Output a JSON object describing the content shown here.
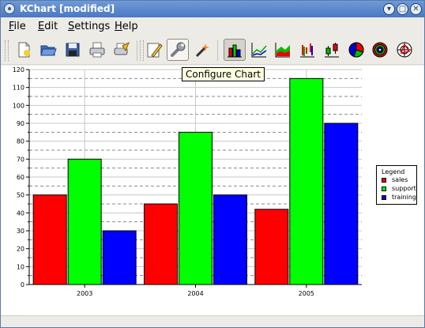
{
  "window": {
    "title": "KChart [modified]"
  },
  "titlebar_buttons": [
    "minimize",
    "maximize",
    "close"
  ],
  "menu": [
    {
      "label": "File",
      "mnemonic": "F",
      "rest": "ile"
    },
    {
      "label": "Edit",
      "mnemonic": "E",
      "rest": "dit"
    },
    {
      "label": "Settings",
      "mnemonic": "S",
      "rest": "ettings"
    },
    {
      "label": "Help",
      "mnemonic": "H",
      "rest": "elp"
    }
  ],
  "toolbar": {
    "tooltip": "Configure Chart",
    "buttons": [
      {
        "name": "new-document-icon"
      },
      {
        "name": "open-folder-icon"
      },
      {
        "name": "save-icon"
      },
      {
        "name": "print-icon"
      },
      {
        "name": "print-preview-icon"
      },
      {
        "name": "edit-data-icon"
      },
      {
        "name": "configure-chart-icon",
        "state": "hover"
      },
      {
        "name": "wizard-icon"
      },
      {
        "name": "bar-chart-icon",
        "state": "pressed"
      },
      {
        "name": "line-chart-icon"
      },
      {
        "name": "area-chart-icon"
      },
      {
        "name": "hilo-chart-icon"
      },
      {
        "name": "box-whisker-chart-icon"
      },
      {
        "name": "pie-chart-icon"
      },
      {
        "name": "ring-chart-icon"
      },
      {
        "name": "polar-chart-icon"
      }
    ]
  },
  "colors": {
    "sales": "#ff0000",
    "support": "#00ff00",
    "training": "#0000ff"
  },
  "chart_data": {
    "type": "bar",
    "categories": [
      "2003",
      "2004",
      "2005"
    ],
    "series": [
      {
        "name": "sales",
        "values": [
          50,
          45,
          42
        ]
      },
      {
        "name": "support",
        "values": [
          70,
          85,
          115
        ]
      },
      {
        "name": "training",
        "values": [
          30,
          50,
          90
        ]
      }
    ],
    "ylim": [
      0,
      120
    ],
    "y_ticks": [
      "0",
      "10",
      "20",
      "30",
      "40",
      "50",
      "60",
      "70",
      "80",
      "90",
      "100",
      "110",
      "120"
    ],
    "legend_title": "Legend",
    "legend_position": "right",
    "grid": true
  }
}
